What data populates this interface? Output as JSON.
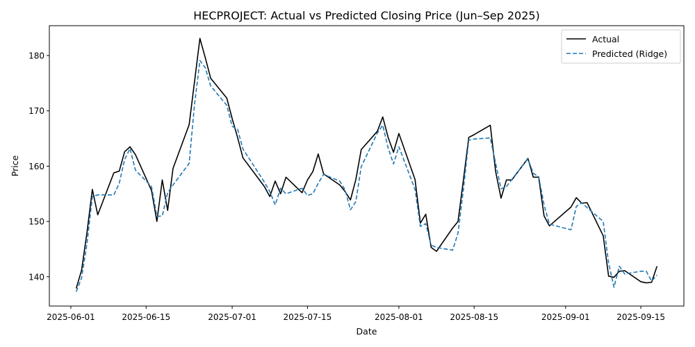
{
  "chart_data": {
    "type": "line",
    "title": "HECPROJECT: Actual vs Predicted Closing Price (Jun–Sep 2025)",
    "xlabel": "Date",
    "ylabel": "Price",
    "x_range": [
      "2025-05-28",
      "2025-09-23"
    ],
    "ylim": [
      134.7,
      185.4
    ],
    "x_ticks": [
      "2025-06-01",
      "2025-06-15",
      "2025-07-01",
      "2025-07-15",
      "2025-08-01",
      "2025-08-15",
      "2025-09-01",
      "2025-09-15"
    ],
    "y_ticks": [
      140,
      150,
      160,
      170,
      180
    ],
    "grid": false,
    "legend_position": "top-right",
    "x": [
      "2025-06-02",
      "2025-06-03",
      "2025-06-04",
      "2025-06-05",
      "2025-06-06",
      "2025-06-09",
      "2025-06-10",
      "2025-06-11",
      "2025-06-12",
      "2025-06-13",
      "2025-06-16",
      "2025-06-17",
      "2025-06-18",
      "2025-06-19",
      "2025-06-20",
      "2025-06-23",
      "2025-06-24",
      "2025-06-25",
      "2025-06-26",
      "2025-06-27",
      "2025-06-30",
      "2025-07-01",
      "2025-07-02",
      "2025-07-03",
      "2025-07-07",
      "2025-07-08",
      "2025-07-09",
      "2025-07-10",
      "2025-07-11",
      "2025-07-14",
      "2025-07-15",
      "2025-07-16",
      "2025-07-17",
      "2025-07-18",
      "2025-07-21",
      "2025-07-22",
      "2025-07-23",
      "2025-07-24",
      "2025-07-25",
      "2025-07-28",
      "2025-07-29",
      "2025-07-30",
      "2025-07-31",
      "2025-08-01",
      "2025-08-04",
      "2025-08-05",
      "2025-08-06",
      "2025-08-07",
      "2025-08-08",
      "2025-08-11",
      "2025-08-12",
      "2025-08-13",
      "2025-08-14",
      "2025-08-15",
      "2025-08-18",
      "2025-08-19",
      "2025-08-20",
      "2025-08-21",
      "2025-08-22",
      "2025-08-25",
      "2025-08-26",
      "2025-08-27",
      "2025-08-28",
      "2025-08-29",
      "2025-09-02",
      "2025-09-03",
      "2025-09-04",
      "2025-09-05",
      "2025-09-08",
      "2025-09-09",
      "2025-09-10",
      "2025-09-11",
      "2025-09-12",
      "2025-09-15",
      "2025-09-16",
      "2025-09-17",
      "2025-09-18"
    ],
    "series": [
      {
        "name": "Actual",
        "color": "#000000",
        "style": "solid",
        "values": [
          137.9,
          141.2,
          148.0,
          155.8,
          151.2,
          158.8,
          159.1,
          162.6,
          163.5,
          162.1,
          155.6,
          150.0,
          157.5,
          152.0,
          159.6,
          167.5,
          175.3,
          183.1,
          179.6,
          175.9,
          172.3,
          168.6,
          165.2,
          161.5,
          156.3,
          154.5,
          157.3,
          155.0,
          158.0,
          155.2,
          157.5,
          159.0,
          162.2,
          158.6,
          156.6,
          155.4,
          153.9,
          157.6,
          163.0,
          166.3,
          168.9,
          165.2,
          162.5,
          165.9,
          157.6,
          149.7,
          151.3,
          145.3,
          144.6,
          148.8,
          150.0,
          157.5,
          165.2,
          165.7,
          167.4,
          159.0,
          154.2,
          157.5,
          157.5,
          161.4,
          158.0,
          158.0,
          151.0,
          149.2,
          152.6,
          154.3,
          153.3,
          153.4,
          147.4,
          140.1,
          139.9,
          141.0,
          141.1,
          139.1,
          138.9,
          139.0,
          141.9
        ]
      },
      {
        "name": "Predicted (Ridge)",
        "color": "#1f77b4",
        "style": "dashed",
        "values": [
          137.3,
          139.8,
          146.0,
          154.5,
          154.8,
          154.8,
          156.9,
          161.2,
          163.2,
          159.3,
          156.3,
          150.9,
          151.0,
          155.2,
          156.6,
          160.5,
          171.2,
          179.1,
          177.8,
          174.5,
          171.0,
          167.2,
          166.7,
          163.1,
          157.1,
          155.4,
          153.0,
          156.0,
          155.0,
          156.0,
          154.7,
          155.0,
          156.9,
          158.5,
          157.3,
          155.7,
          152.1,
          153.6,
          159.9,
          166.0,
          167.4,
          163.3,
          160.4,
          163.5,
          155.8,
          149.1,
          149.6,
          145.7,
          145.3,
          144.8,
          147.9,
          155.8,
          164.7,
          164.9,
          165.1,
          160.5,
          155.9,
          156.3,
          157.6,
          161.3,
          158.7,
          158.1,
          153.0,
          149.5,
          148.5,
          152.7,
          153.4,
          152.5,
          150.0,
          142.5,
          138.1,
          141.9,
          140.5,
          141.0,
          141.0,
          139.2,
          140.3
        ]
      }
    ]
  }
}
